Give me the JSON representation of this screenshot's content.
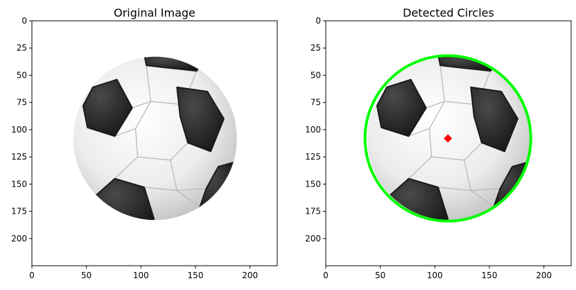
{
  "chart_data": [
    {
      "type": "image",
      "title": "Original Image",
      "xlim": [
        0,
        225
      ],
      "ylim": [
        225,
        0
      ],
      "xticks": [
        0,
        50,
        100,
        150,
        200
      ],
      "yticks": [
        0,
        25,
        50,
        75,
        100,
        125,
        150,
        175,
        200
      ],
      "image": {
        "content": "soccer ball on white background",
        "center": [
          113,
          108
        ],
        "radius": 75
      }
    },
    {
      "type": "image",
      "title": "Detected Circles",
      "xlim": [
        0,
        225
      ],
      "ylim": [
        225,
        0
      ],
      "xticks": [
        0,
        50,
        100,
        150,
        200
      ],
      "yticks": [
        0,
        25,
        50,
        75,
        100,
        125,
        150,
        175,
        200
      ],
      "image": {
        "content": "soccer ball on white background",
        "center": [
          113,
          108
        ],
        "radius": 75
      },
      "detected_circle": {
        "center_x": 112,
        "center_y": 108,
        "radius": 76,
        "color": "#00ff00"
      },
      "center_marker": {
        "x": 112,
        "y": 108,
        "color": "#ff0000"
      }
    }
  ]
}
